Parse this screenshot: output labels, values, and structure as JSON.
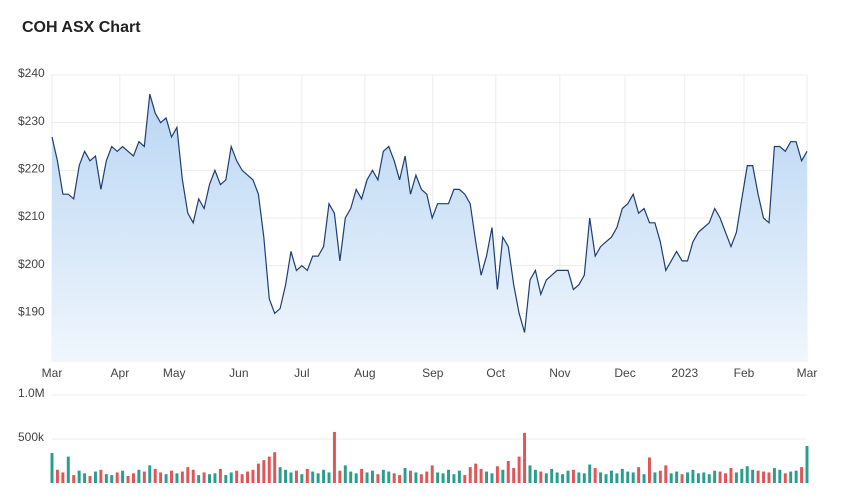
{
  "chart_data": [
    {
      "type": "area",
      "title": "COH ASX Chart",
      "color": "#1f3d73",
      "fill_top": "#b9d6f3",
      "fill_bottom": "#f0f6fd",
      "grid": true,
      "values": [
        227,
        222,
        215,
        215,
        214,
        221,
        224,
        222,
        223,
        216,
        222,
        225,
        224,
        225,
        224,
        223,
        226,
        225,
        236,
        232,
        230,
        231,
        227,
        229,
        218,
        211,
        209,
        214,
        212,
        217,
        220,
        217,
        218,
        225,
        222,
        220,
        219,
        218,
        215,
        206,
        193,
        190,
        191,
        196,
        203,
        199,
        200,
        199,
        202,
        202,
        204,
        213,
        211,
        201,
        210,
        212,
        216,
        214,
        218,
        220,
        218,
        224,
        225,
        222,
        218,
        223,
        215,
        219,
        216,
        215,
        210,
        213,
        213,
        213,
        216,
        216,
        215,
        213,
        205,
        198,
        202,
        208,
        195,
        206,
        204,
        196,
        190,
        186,
        197,
        199,
        194,
        197,
        198,
        199,
        199,
        199,
        195,
        196,
        198,
        210,
        202,
        204,
        205,
        206,
        208,
        212,
        213,
        215,
        211,
        212,
        209,
        209,
        205,
        199,
        201,
        203,
        201,
        201,
        205,
        207,
        208,
        209,
        212,
        210,
        207,
        204,
        207,
        214,
        221,
        221,
        215,
        210,
        209,
        225,
        225,
        224,
        226,
        226,
        222,
        224
      ],
      "xlim": [
        0,
        139
      ],
      "xticks": [
        {
          "value": 0,
          "label": "Mar"
        },
        {
          "value": 12.5,
          "label": "Apr"
        },
        {
          "value": 22.5,
          "label": "May"
        },
        {
          "value": 34.4,
          "label": "Jun"
        },
        {
          "value": 46,
          "label": "Jul"
        },
        {
          "value": 57.6,
          "label": "Aug"
        },
        {
          "value": 70.1,
          "label": "Sep"
        },
        {
          "value": 81.7,
          "label": "Oct"
        },
        {
          "value": 93.5,
          "label": "Nov"
        },
        {
          "value": 105.5,
          "label": "Dec"
        },
        {
          "value": 116.5,
          "label": "2023"
        },
        {
          "value": 127.4,
          "label": "Feb"
        },
        {
          "value": 139,
          "label": "Mar"
        }
      ],
      "ylim": [
        180,
        240
      ],
      "yticks": [
        {
          "value": 190,
          "label": "$190"
        },
        {
          "value": 200,
          "label": "$200"
        },
        {
          "value": 210,
          "label": "$210"
        },
        {
          "value": 220,
          "label": "$220"
        },
        {
          "value": 230,
          "label": "$230"
        },
        {
          "value": 240,
          "label": "$240"
        }
      ]
    },
    {
      "type": "bar",
      "up_color": "#2a9d8f",
      "down_color": "#e05656",
      "grid": true,
      "values": [
        340000,
        150000,
        120000,
        300000,
        90000,
        140000,
        110000,
        80000,
        130000,
        150000,
        100000,
        90000,
        120000,
        140000,
        80000,
        110000,
        150000,
        130000,
        200000,
        160000,
        120000,
        100000,
        140000,
        110000,
        130000,
        180000,
        150000,
        90000,
        120000,
        100000,
        110000,
        160000,
        90000,
        120000,
        140000,
        100000,
        130000,
        150000,
        220000,
        260000,
        300000,
        350000,
        180000,
        150000,
        120000,
        140000,
        100000,
        160000,
        130000,
        110000,
        150000,
        120000,
        580000,
        140000,
        200000,
        130000,
        110000,
        160000,
        120000,
        140000,
        100000,
        150000,
        130000,
        110000,
        90000,
        170000,
        140000,
        120000,
        100000,
        130000,
        200000,
        120000,
        110000,
        150000,
        100000,
        140000,
        90000,
        180000,
        220000,
        160000,
        130000,
        110000,
        190000,
        150000,
        250000,
        170000,
        300000,
        570000,
        200000,
        150000,
        130000,
        110000,
        160000,
        120000,
        100000,
        140000,
        150000,
        120000,
        110000,
        210000,
        170000,
        120000,
        100000,
        140000,
        110000,
        160000,
        130000,
        120000,
        180000,
        100000,
        290000,
        120000,
        140000,
        200000,
        110000,
        130000,
        100000,
        120000,
        150000,
        110000,
        120000,
        100000,
        140000,
        130000,
        110000,
        170000,
        120000,
        160000,
        190000,
        150000,
        140000,
        130000,
        120000,
        170000,
        150000,
        110000,
        130000,
        140000,
        180000,
        420000
      ],
      "xlim": [
        0,
        139
      ],
      "ylim": [
        0,
        1000000
      ],
      "yticks": [
        {
          "value": 500000,
          "label": "500k"
        },
        {
          "value": 1000000,
          "label": "1.0M"
        }
      ]
    }
  ]
}
